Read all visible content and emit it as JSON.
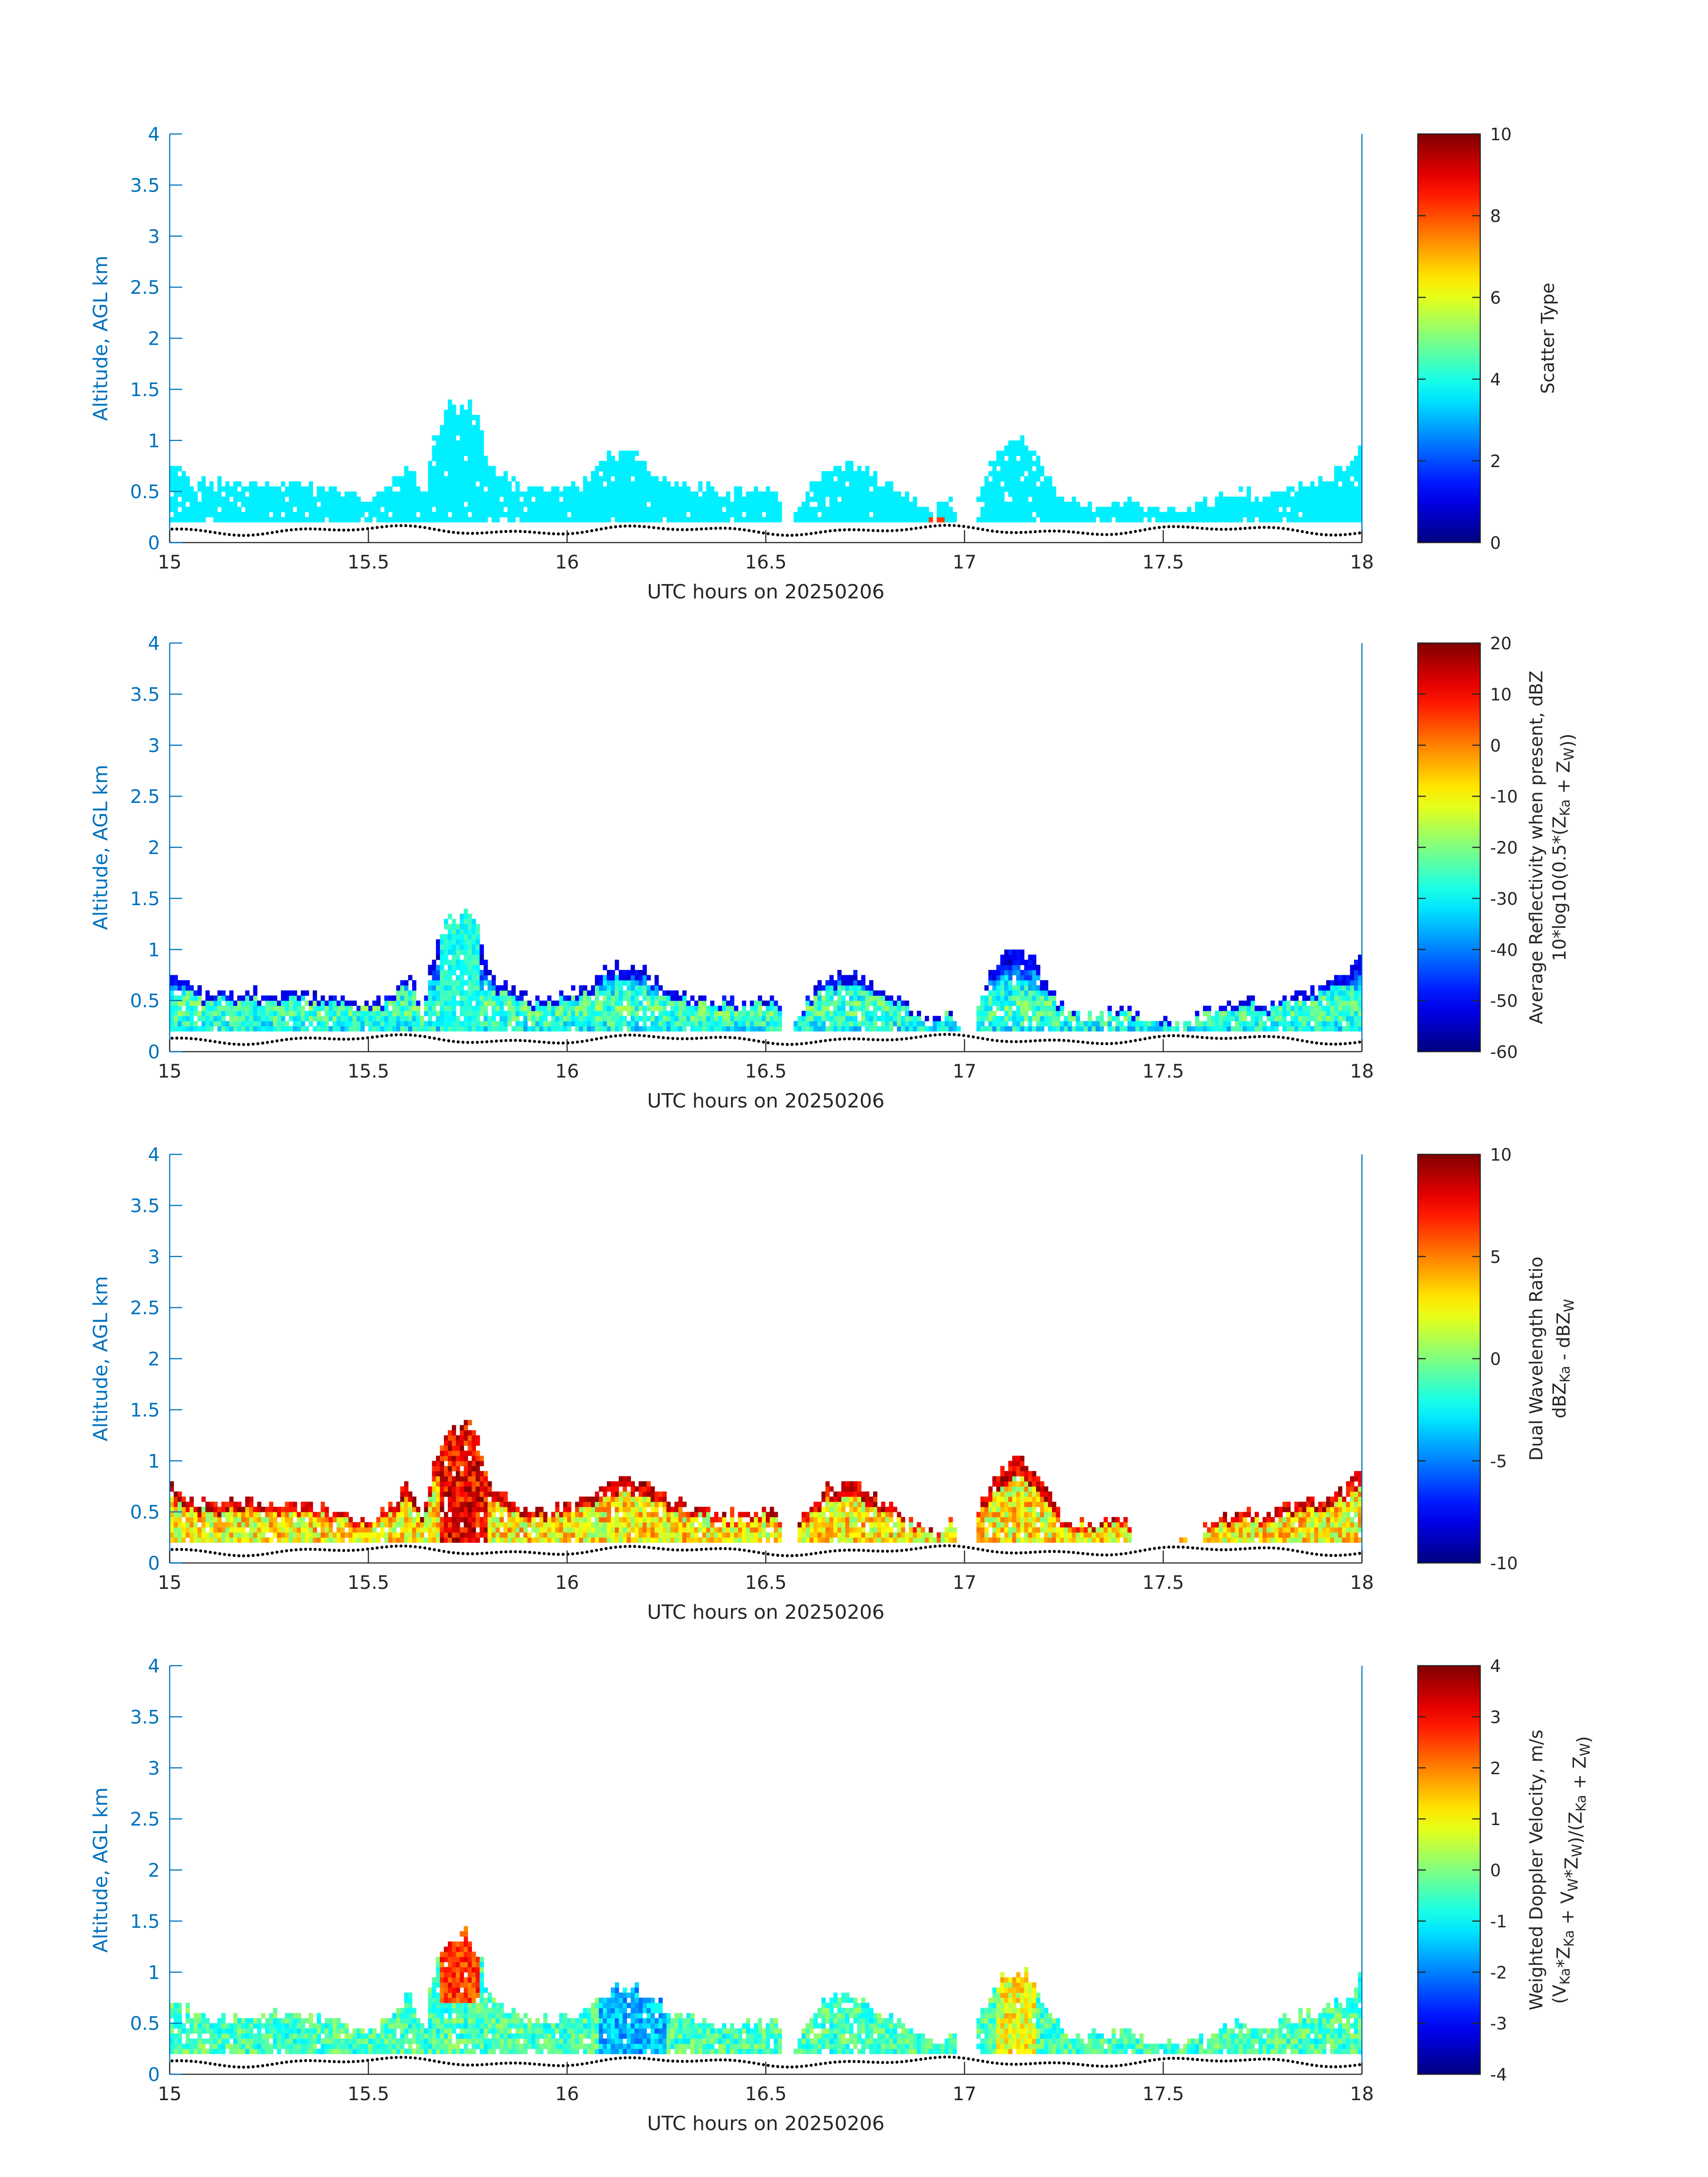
{
  "colors": {
    "axis_left": "#0072BD",
    "axis_bottom": "#262626",
    "ground_marker": "#000000"
  },
  "colormap": "jet",
  "chart_data": [
    {
      "type": "heatmap",
      "id": "scatter-type",
      "xlabel": "UTC hours on 20250206",
      "ylabel": "Altitude, AGL km",
      "xlim": [
        15,
        18
      ],
      "ylim": [
        0,
        4
      ],
      "xticks": [
        "15",
        "15.5",
        "16",
        "16.5",
        "17",
        "17.5",
        "18"
      ],
      "yticks": [
        "0",
        "0.5",
        "1",
        "1.5",
        "2",
        "2.5",
        "3",
        "3.5",
        "4"
      ],
      "colorbar": {
        "label_lines": [
          "Scatter Type"
        ],
        "clim": [
          0,
          10
        ],
        "ticks": [
          "0",
          "2",
          "4",
          "6",
          "8",
          "10"
        ]
      },
      "mode": "type"
    },
    {
      "type": "heatmap",
      "id": "avg-reflectivity",
      "xlabel": "UTC hours on 20250206",
      "ylabel": "Altitude, AGL km",
      "xlim": [
        15,
        18
      ],
      "ylim": [
        0,
        4
      ],
      "xticks": [
        "15",
        "15.5",
        "16",
        "16.5",
        "17",
        "17.5",
        "18"
      ],
      "yticks": [
        "0",
        "0.5",
        "1",
        "1.5",
        "2",
        "2.5",
        "3",
        "3.5",
        "4"
      ],
      "colorbar": {
        "label_lines": [
          "Average Reflectivity when present, dBZ",
          "10*log10(0.5*(Z_Ka + Z_W))"
        ],
        "clim": [
          -60,
          20
        ],
        "ticks": [
          "-60",
          "-50",
          "-40",
          "-30",
          "-20",
          "-10",
          "0",
          "10",
          "20"
        ]
      },
      "mode": "dbz"
    },
    {
      "type": "heatmap",
      "id": "dual-wavelength-ratio",
      "xlabel": "UTC hours on 20250206",
      "ylabel": "Altitude, AGL km",
      "xlim": [
        15,
        18
      ],
      "ylim": [
        0,
        4
      ],
      "xticks": [
        "15",
        "15.5",
        "16",
        "16.5",
        "17",
        "17.5",
        "18"
      ],
      "yticks": [
        "0",
        "0.5",
        "1",
        "1.5",
        "2",
        "2.5",
        "3",
        "3.5",
        "4"
      ],
      "colorbar": {
        "label_lines": [
          "Dual Wavelength Ratio",
          "dBZ_Ka - dBZ_W"
        ],
        "clim": [
          -10,
          10
        ],
        "ticks": [
          "-10",
          "-5",
          "0",
          "5",
          "10"
        ]
      },
      "mode": "dwr"
    },
    {
      "type": "heatmap",
      "id": "doppler-velocity",
      "xlabel": "UTC hours on 20250206",
      "ylabel": "Altitude, AGL km",
      "xlim": [
        15,
        18
      ],
      "ylim": [
        0,
        4
      ],
      "xticks": [
        "15",
        "15.5",
        "16",
        "16.5",
        "17",
        "17.5",
        "18"
      ],
      "yticks": [
        "0",
        "0.5",
        "1",
        "1.5",
        "2",
        "2.5",
        "3",
        "3.5",
        "4"
      ],
      "colorbar": {
        "label_lines": [
          "Weighted Doppler Velocity, m/s",
          "(V_Ka*Z_Ka + V_W*Z_W)/(Z_Ka + Z_W)"
        ],
        "clim": [
          -4,
          4
        ],
        "ticks": [
          "-4",
          "-3",
          "-2",
          "-1",
          "0",
          "1",
          "2",
          "3",
          "4"
        ]
      },
      "mode": "vel"
    }
  ],
  "cloud_top_profile": {
    "description_units": "x in UTC hours, top in km AGL",
    "x": [
      15.0,
      15.05,
      15.08,
      15.12,
      15.2,
      15.25,
      15.32,
      15.4,
      15.5,
      15.55,
      15.6,
      15.64,
      15.66,
      15.7,
      15.75,
      15.78,
      15.8,
      15.85,
      15.9,
      15.95,
      16.0,
      16.05,
      16.1,
      16.15,
      16.2,
      16.25,
      16.3,
      16.35,
      16.4,
      16.45,
      16.5,
      16.53,
      16.55,
      16.6,
      16.65,
      16.7,
      16.75,
      16.8,
      16.85,
      16.9,
      16.93,
      16.97,
      17.0,
      17.05,
      17.1,
      17.15,
      17.2,
      17.25,
      17.3,
      17.35,
      17.4,
      17.45,
      17.5,
      17.55,
      17.6,
      17.65,
      17.7,
      17.75,
      17.8,
      17.85,
      17.9,
      17.95,
      18.0
    ],
    "top": [
      0.75,
      0.6,
      0.55,
      0.55,
      0.55,
      0.55,
      0.55,
      0.5,
      0.4,
      0.5,
      0.75,
      0.4,
      0.9,
      1.3,
      1.35,
      1.15,
      0.75,
      0.6,
      0.5,
      0.5,
      0.55,
      0.6,
      0.8,
      0.85,
      0.75,
      0.6,
      0.55,
      0.5,
      0.45,
      0.45,
      0.5,
      0.55,
      0.0,
      0.45,
      0.7,
      0.75,
      0.7,
      0.55,
      0.45,
      0.3,
      0.3,
      0.4,
      0.0,
      0.65,
      0.95,
      1.0,
      0.7,
      0.4,
      0.35,
      0.35,
      0.4,
      0.3,
      0.3,
      0.25,
      0.35,
      0.4,
      0.5,
      0.4,
      0.5,
      0.55,
      0.6,
      0.7,
      0.95
    ]
  }
}
